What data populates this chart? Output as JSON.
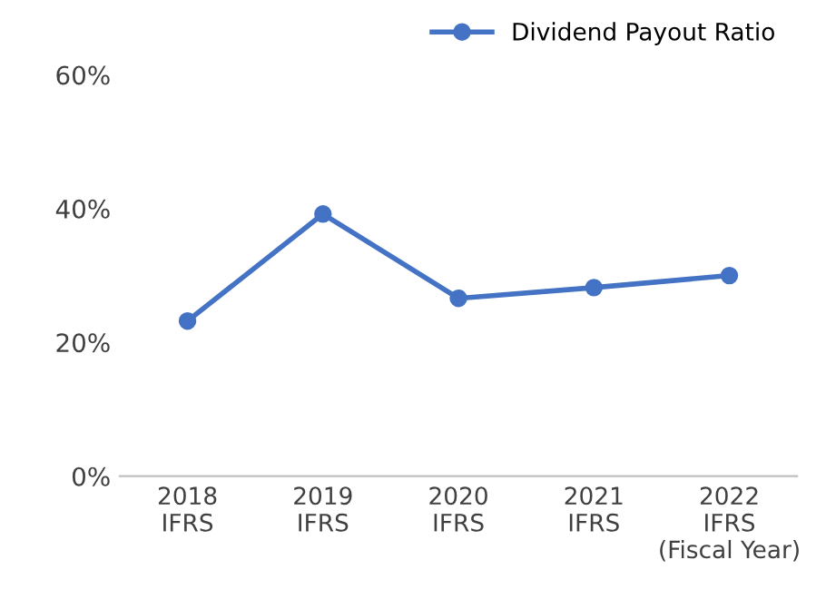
{
  "chart_data": {
    "type": "line",
    "categories": [
      "2018\nIFRS",
      "2019\nIFRS",
      "2020\nIFRS",
      "2021\nIFRS",
      "2022\nIFRS\n(Fiscal Year)"
    ],
    "series": [
      {
        "name": "Dividend Payout Ratio",
        "color": "#4472c4",
        "values": [
          23.2,
          39.2,
          26.6,
          28.2,
          30.0
        ]
      }
    ],
    "ylim": [
      0,
      60
    ],
    "yticks": [
      {
        "value": 0,
        "label": "0%"
      },
      {
        "value": 20,
        "label": "20%"
      },
      {
        "value": 40,
        "label": "40%"
      },
      {
        "value": 60,
        "label": "60%"
      }
    ],
    "marker": "circle",
    "line_style": "solid",
    "legend": "top right",
    "grid": false
  }
}
